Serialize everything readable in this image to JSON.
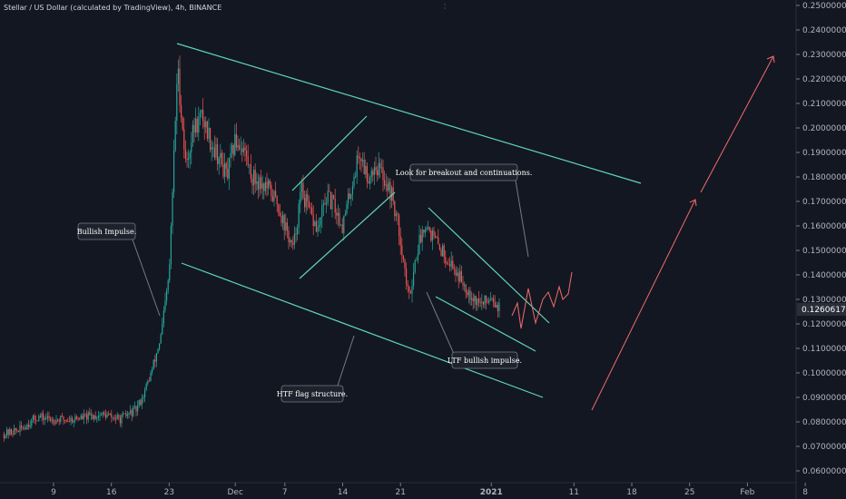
{
  "header": {
    "symbol_title": "Stellar / US Dollar (calculated by TradingView), 4h, BINANCE"
  },
  "colors": {
    "background": "#131722",
    "up": "#26a69a",
    "down": "#ef5350",
    "trend_line": "#5ed6b4",
    "projection": "#f26b6b",
    "annotation_box": "#1e222d"
  },
  "price_axis": {
    "ticks": [
      "0.25000000",
      "0.24000000",
      "0.23000000",
      "0.22000000",
      "0.21000000",
      "0.20000000",
      "0.19000000",
      "0.18000000",
      "0.17000000",
      "0.16000000",
      "0.15000000",
      "0.14000000",
      "0.13000000",
      "0.12000000",
      "0.11000000",
      "0.10000000",
      "0.09000000",
      "0.08000000",
      "0.07000000",
      "0.06000000"
    ],
    "current_price": "0.12606178"
  },
  "time_axis": {
    "ticks": [
      "9",
      "16",
      "23",
      "Dec",
      "7",
      "14",
      "21",
      "2021",
      "11",
      "18",
      "25",
      "Feb",
      "8"
    ]
  },
  "annotations": {
    "bullish_impulse": "Bullish Impulse.",
    "breakout": "Look for breakout and continuations.",
    "ltf_impulse": "LTF bullish impulse.",
    "htf_flag": "HTF flag structure."
  },
  "chart_data": {
    "type": "line",
    "title": "Stellar / US Dollar (calculated by TradingView), 4h, BINANCE",
    "xlabel": "",
    "ylabel": "",
    "ylim": [
      0.06,
      0.25
    ],
    "y_log_scale": false,
    "grid": false,
    "x_ticks": [
      "9",
      "16",
      "23",
      "Dec",
      "7",
      "14",
      "21",
      "2021",
      "11",
      "18",
      "25",
      "Feb",
      "8"
    ],
    "series": [
      {
        "x": [
          "2020-11-03",
          "2020-11-05",
          "2020-11-07",
          "2020-11-09",
          "2020-11-11",
          "2020-11-13",
          "2020-11-15",
          "2020-11-17",
          "2020-11-19",
          "2020-11-20",
          "2020-11-21",
          "2020-11-22",
          "2020-11-23",
          "2020-11-24",
          "2020-11-25",
          "2020-11-26",
          "2020-11-27",
          "2020-11-28",
          "2020-11-29",
          "2020-11-30",
          "2020-12-01",
          "2020-12-02",
          "2020-12-03",
          "2020-12-04",
          "2020-12-05",
          "2020-12-06",
          "2020-12-07",
          "2020-12-08",
          "2020-12-09",
          "2020-12-10",
          "2020-12-11",
          "2020-12-12",
          "2020-12-13",
          "2020-12-14",
          "2020-12-15",
          "2020-12-16",
          "2020-12-17",
          "2020-12-18",
          "2020-12-19",
          "2020-12-20",
          "2020-12-21",
          "2020-12-22",
          "2020-12-23",
          "2020-12-24",
          "2020-12-25",
          "2020-12-26",
          "2020-12-27",
          "2020-12-28",
          "2020-12-29",
          "2020-12-30",
          "2020-12-31",
          "2021-01-01",
          "2021-01-02"
        ],
        "values": [
          0.075,
          0.077,
          0.082,
          0.081,
          0.081,
          0.082,
          0.083,
          0.081,
          0.085,
          0.092,
          0.102,
          0.115,
          0.14,
          0.225,
          0.185,
          0.2,
          0.205,
          0.195,
          0.188,
          0.18,
          0.195,
          0.192,
          0.18,
          0.178,
          0.175,
          0.17,
          0.16,
          0.15,
          0.175,
          0.165,
          0.158,
          0.172,
          0.168,
          0.16,
          0.175,
          0.19,
          0.18,
          0.185,
          0.18,
          0.172,
          0.155,
          0.13,
          0.15,
          0.162,
          0.155,
          0.15,
          0.145,
          0.14,
          0.135,
          0.13,
          0.128,
          0.132,
          0.126
        ]
      }
    ]
  }
}
